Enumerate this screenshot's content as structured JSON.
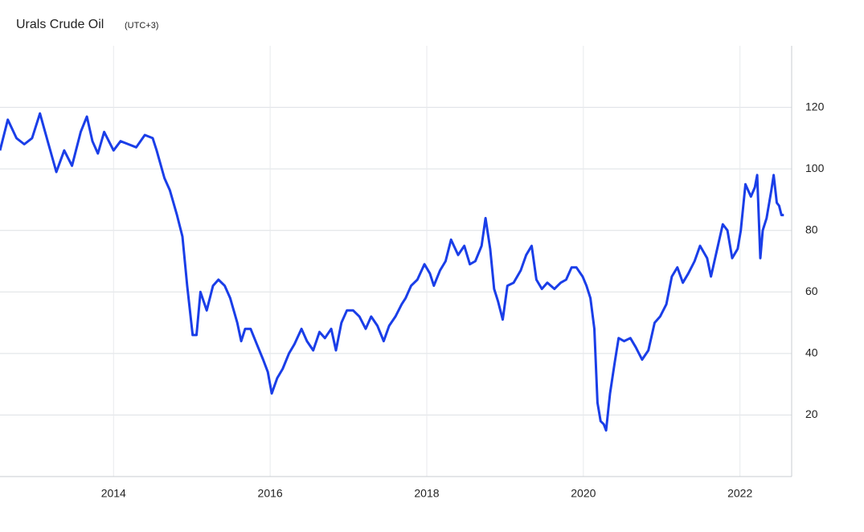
{
  "chart_data": {
    "type": "line",
    "title": "Urals Crude Oil",
    "subtitle": "(UTC+3)",
    "x": [
      2012.55,
      2012.65,
      2012.76,
      2012.86,
      2012.96,
      2013.06,
      2013.17,
      2013.27,
      2013.37,
      2013.47,
      2013.58,
      2013.66,
      2013.73,
      2013.8,
      2013.88,
      2014.0,
      2014.09,
      2014.19,
      2014.29,
      2014.4,
      2014.5,
      2014.55,
      2014.65,
      2014.72,
      2014.81,
      2014.88,
      2014.94,
      2015.01,
      2015.06,
      2015.11,
      2015.19,
      2015.27,
      2015.34,
      2015.42,
      2015.49,
      2015.58,
      2015.63,
      2015.68,
      2015.75,
      2015.83,
      2015.91,
      2015.97,
      2016.02,
      2016.09,
      2016.16,
      2016.24,
      2016.31,
      2016.4,
      2016.47,
      2016.55,
      2016.63,
      2016.7,
      2016.78,
      2016.84,
      2016.91,
      2016.98,
      2017.06,
      2017.14,
      2017.22,
      2017.29,
      2017.37,
      2017.45,
      2017.52,
      2017.6,
      2017.68,
      2017.73,
      2017.8,
      2017.88,
      2017.97,
      2018.04,
      2018.09,
      2018.17,
      2018.24,
      2018.31,
      2018.4,
      2018.48,
      2018.55,
      2018.62,
      2018.7,
      2018.75,
      2018.81,
      2018.86,
      2018.91,
      2018.97,
      2019.03,
      2019.11,
      2019.2,
      2019.27,
      2019.34,
      2019.4,
      2019.47,
      2019.54,
      2019.63,
      2019.71,
      2019.78,
      2019.85,
      2019.91,
      2019.99,
      2020.04,
      2020.09,
      2020.14,
      2020.18,
      2020.22,
      2020.26,
      2020.29,
      2020.34,
      2020.4,
      2020.45,
      2020.52,
      2020.6,
      2020.67,
      2020.75,
      2020.83,
      2020.91,
      2020.98,
      2021.06,
      2021.13,
      2021.2,
      2021.27,
      2021.34,
      2021.42,
      2021.49,
      2021.58,
      2021.63,
      2021.7,
      2021.78,
      2021.84,
      2021.9,
      2021.97,
      2022.01,
      2022.07,
      2022.14,
      2022.19,
      2022.22,
      2022.26,
      2022.29,
      2022.34,
      2022.4,
      2022.43,
      2022.47,
      2022.5,
      2022.53,
      2022.56
    ],
    "series": [
      {
        "name": "Urals Crude Oil",
        "color": "#1a3ee8",
        "values": [
          106,
          116,
          110,
          108,
          110,
          118,
          108,
          99,
          106,
          101,
          112,
          117,
          109,
          105,
          112,
          106,
          109,
          108,
          107,
          111,
          110,
          106,
          97,
          93,
          85,
          78,
          62,
          46,
          46,
          60,
          54,
          62,
          64,
          62,
          58,
          50,
          44,
          48,
          48,
          43,
          38,
          34,
          27,
          32,
          35,
          40,
          43,
          48,
          44,
          41,
          47,
          45,
          48,
          41,
          50,
          54,
          54,
          52,
          48,
          52,
          49,
          44,
          49,
          52,
          56,
          58,
          62,
          64,
          69,
          66,
          62,
          67,
          70,
          77,
          72,
          75,
          69,
          70,
          75,
          84,
          74,
          61,
          57,
          51,
          62,
          63,
          67,
          72,
          75,
          64,
          61,
          63,
          61,
          63,
          64,
          68,
          68,
          65,
          62,
          58,
          48,
          24,
          18,
          17,
          15,
          27,
          37,
          45,
          44,
          45,
          42,
          38,
          41,
          50,
          52,
          56,
          65,
          68,
          63,
          66,
          70,
          75,
          71,
          65,
          73,
          82,
          80,
          71,
          74,
          80,
          95,
          91,
          94,
          98,
          71,
          80,
          84,
          93,
          98,
          89,
          88,
          85,
          85
        ]
      }
    ],
    "xlim": [
      2012.55,
      2022.66
    ],
    "ylim": [
      0,
      140
    ],
    "xticks": [
      2014,
      2016,
      2018,
      2020,
      2022
    ],
    "yticks": [
      20,
      40,
      60,
      80,
      100,
      120
    ],
    "grid": true
  }
}
